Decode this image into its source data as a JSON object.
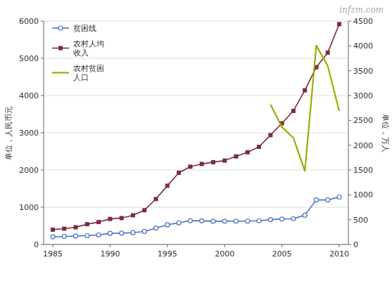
{
  "chart_data": {
    "type": "line",
    "x": [
      1985,
      1986,
      1987,
      1988,
      1989,
      1990,
      1991,
      1992,
      1993,
      1994,
      1995,
      1996,
      1997,
      1998,
      1999,
      2000,
      2001,
      2002,
      2003,
      2004,
      2005,
      2006,
      2007,
      2008,
      2009,
      2010
    ],
    "xlim": [
      1984.2,
      2010.8
    ],
    "xticks": [
      1985,
      1990,
      1995,
      2000,
      2005,
      2010
    ],
    "ylim": [
      0,
      6000
    ],
    "yticks": [
      0,
      1000,
      2000,
      3000,
      4000,
      5000,
      6000
    ],
    "y2lim": [
      0,
      4500
    ],
    "y2ticks": [
      0,
      500,
      1000,
      1500,
      2000,
      2500,
      3000,
      3500,
      4000,
      4500
    ],
    "y_label": "单位，人民币元",
    "y2_label": "单位，万人",
    "grid": true,
    "legend": "upper left",
    "annotations": [
      "infzm.com"
    ],
    "series": [
      {
        "name": "贫困线",
        "color": "#4472C4",
        "marker": "circle",
        "values": [
          206,
          213,
          227,
          236,
          259,
          300,
          304,
          317,
          350,
          440,
          530,
          580,
          640,
          635,
          625,
          625,
          627,
          627,
          637,
          668,
          683,
          693,
          785,
          1196,
          1196,
          1274
        ]
      },
      {
        "name": "农村人均\n收入",
        "color": "#7B2C3D",
        "marker": "square",
        "values": [
          398,
          424,
          463,
          545,
          602,
          686,
          709,
          784,
          921,
          1221,
          1578,
          1926,
          2090,
          2162,
          2210,
          2253,
          2366,
          2476,
          2622,
          2936,
          3255,
          3587,
          4140,
          4761,
          5153,
          5919
        ]
      },
      {
        "name": "农村贫困\n人口",
        "color": "#9AAD00",
        "axis": "y2",
        "values": [
          null,
          null,
          null,
          null,
          null,
          null,
          null,
          null,
          null,
          null,
          null,
          null,
          null,
          null,
          null,
          null,
          null,
          null,
          null,
          2820,
          2365,
          2148,
          1479,
          4007,
          3597,
          2688
        ]
      }
    ]
  }
}
